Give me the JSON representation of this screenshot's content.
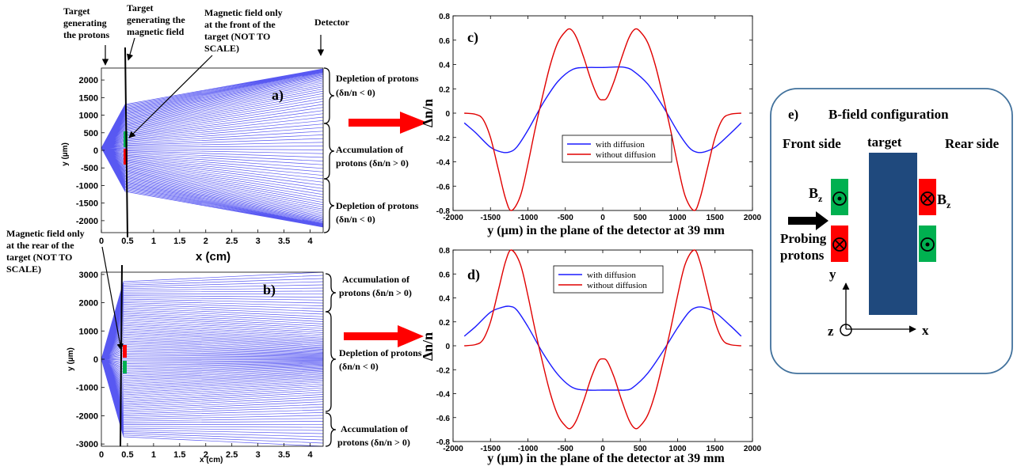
{
  "panel_a": {
    "label": "a)",
    "xlabel": "x (cm)",
    "ylabel": "y (µm)",
    "xticks": [
      "0",
      "0.5",
      "1",
      "1.5",
      "2",
      "2.5",
      "3",
      "3.5",
      "4"
    ],
    "yticks": [
      "2000",
      "1500",
      "1000",
      "500",
      "0",
      "-500",
      "-1000",
      "-1500",
      "-2000"
    ],
    "annotations": {
      "target_protons": [
        "Target",
        "generating",
        "the protons"
      ],
      "target_field": [
        "Target",
        "generating the",
        "magnetic field"
      ],
      "field_front": [
        "Magnetic field only",
        "at the front of the",
        "target (NOT TO",
        "SCALE)"
      ],
      "detector": "Detector"
    },
    "regions": [
      {
        "line1": "Depletion of protons",
        "line2": "(δn/n < 0)"
      },
      {
        "line1": "Accumulation of",
        "line2": "protons (δn/n > 0)"
      },
      {
        "line1": "Depletion of protons",
        "line2": "(δn/n < 0)"
      }
    ]
  },
  "panel_b": {
    "label": "b)",
    "xlabel": "x (cm)",
    "ylabel": "y (µm)",
    "xticks": [
      "0",
      "0.5",
      "1",
      "1.5",
      "2",
      "2.5",
      "3",
      "3.5",
      "4"
    ],
    "yticks": [
      "3000",
      "2000",
      "1000",
      "0",
      "-1000",
      "-2000",
      "-3000"
    ],
    "annotations": {
      "field_rear": [
        "Magnetic field only",
        "at the rear of the",
        "target (NOT TO",
        "SCALE)"
      ]
    },
    "regions": [
      {
        "line1": "Accumulation of",
        "line2": "protons (δn/n > 0)"
      },
      {
        "line1": "Depletion of protons",
        "line2": "(δn/n < 0)"
      },
      {
        "line1": "Accumulation of",
        "line2": "protons (δn/n > 0)"
      }
    ]
  },
  "panel_e": {
    "label": "e)",
    "title": "B-field configuration",
    "front": "Front side",
    "target": "target",
    "rear": "Rear side",
    "bz": "B",
    "bz_sub": "z",
    "probing1": "Probing",
    "probing2": "protons",
    "axis_y": "y",
    "axis_z": "z",
    "axis_x": "x"
  },
  "colors": {
    "with_diffusion": "#1a1aff",
    "without_diffusion": "#e00000",
    "rays": "#3b3bf0",
    "arrow": "#ff0000",
    "target_block": "#1f497d",
    "field_green": "#00b050",
    "field_red": "#ff0000",
    "frame_e": "#41719c"
  },
  "chart_data": [
    {
      "id": "c",
      "label": "c)",
      "type": "line",
      "xlabel": "y (µm) in the plane of the detector at 39 mm",
      "ylabel": "Δn/n",
      "xlim": [
        -2000,
        2000
      ],
      "ylim": [
        -0.8,
        0.8
      ],
      "xticks": [
        -2000,
        -1500,
        -1000,
        -500,
        0,
        500,
        1000,
        1500,
        2000
      ],
      "yticks": [
        0.8,
        0.6,
        0.4,
        0.2,
        0,
        -0.2,
        -0.4,
        -0.6,
        -0.8
      ],
      "ytick_labels": [
        "0.8",
        "0.6",
        "0.4",
        "0.2",
        "0",
        "-0.2",
        "-0.4",
        "-0.6",
        "-0.8"
      ],
      "legend": "center",
      "series": [
        {
          "name": "with diffusion",
          "color": "#1a1aff",
          "x": [
            -1850,
            -1700,
            -1500,
            -1350,
            -1250,
            -1150,
            -1000,
            -800,
            -600,
            -400,
            -200,
            0,
            200,
            300,
            400,
            600,
            800,
            1000,
            1150,
            1250,
            1350,
            1500,
            1700,
            1850
          ],
          "y": [
            -0.08,
            -0.16,
            -0.28,
            -0.32,
            -0.32,
            -0.28,
            -0.14,
            0.08,
            0.26,
            0.36,
            0.375,
            0.375,
            0.38,
            0.375,
            0.35,
            0.24,
            0.06,
            -0.15,
            -0.28,
            -0.32,
            -0.32,
            -0.28,
            -0.17,
            -0.08
          ]
        },
        {
          "name": "without diffusion",
          "color": "#e00000",
          "x": [
            -1850,
            -1700,
            -1600,
            -1500,
            -1400,
            -1300,
            -1220,
            -1100,
            -1000,
            -900,
            -800,
            -700,
            -600,
            -500,
            -430,
            -350,
            -250,
            -150,
            -60,
            0,
            60,
            150,
            250,
            350,
            430,
            500,
            600,
            700,
            800,
            900,
            1000,
            1100,
            1220,
            1300,
            1400,
            1500,
            1600,
            1700,
            1850
          ],
          "y": [
            0,
            -0.01,
            -0.05,
            -0.2,
            -0.45,
            -0.7,
            -0.8,
            -0.68,
            -0.42,
            -0.12,
            0.15,
            0.4,
            0.58,
            0.67,
            0.69,
            0.62,
            0.45,
            0.26,
            0.13,
            0.11,
            0.13,
            0.26,
            0.45,
            0.62,
            0.69,
            0.67,
            0.58,
            0.4,
            0.15,
            -0.12,
            -0.42,
            -0.68,
            -0.8,
            -0.7,
            -0.45,
            -0.2,
            -0.05,
            -0.01,
            0
          ]
        }
      ]
    },
    {
      "id": "d",
      "label": "d)",
      "type": "line",
      "xlabel": "y (µm) in the plane of the detector at 39 mm",
      "ylabel": "Δn/n",
      "xlim": [
        -2000,
        2000
      ],
      "ylim": [
        -0.8,
        0.8
      ],
      "xticks": [
        -2000,
        -1500,
        -1000,
        -500,
        0,
        500,
        1000,
        1500,
        2000
      ],
      "yticks": [
        0.8,
        0.6,
        0.4,
        0.2,
        0,
        -0.2,
        -0.4,
        -0.6,
        -0.8
      ],
      "ytick_labels": [
        "0.8",
        "0.6",
        "0.4",
        "0.2",
        "0",
        "-0.2",
        "-0.4",
        "-0.6",
        "-0.8"
      ],
      "legend": "top",
      "series": [
        {
          "name": "with diffusion",
          "color": "#1a1aff",
          "x": [
            -1850,
            -1700,
            -1500,
            -1350,
            -1250,
            -1150,
            -1000,
            -800,
            -600,
            -400,
            -200,
            0,
            200,
            300,
            400,
            600,
            800,
            1000,
            1150,
            1250,
            1350,
            1500,
            1700,
            1850
          ],
          "y": [
            0.08,
            0.16,
            0.28,
            0.32,
            0.33,
            0.3,
            0.16,
            -0.06,
            -0.24,
            -0.35,
            -0.37,
            -0.37,
            -0.37,
            -0.37,
            -0.35,
            -0.23,
            -0.05,
            0.15,
            0.28,
            0.32,
            0.32,
            0.28,
            0.17,
            0.08
          ]
        },
        {
          "name": "without diffusion",
          "color": "#e00000",
          "x": [
            -1850,
            -1700,
            -1600,
            -1500,
            -1400,
            -1300,
            -1220,
            -1100,
            -1000,
            -900,
            -800,
            -700,
            -600,
            -500,
            -430,
            -350,
            -250,
            -150,
            -60,
            0,
            60,
            150,
            250,
            350,
            430,
            500,
            600,
            700,
            800,
            900,
            1000,
            1100,
            1220,
            1300,
            1400,
            1500,
            1600,
            1700,
            1850
          ],
          "y": [
            0,
            0.01,
            0.05,
            0.2,
            0.45,
            0.7,
            0.8,
            0.68,
            0.42,
            0.12,
            -0.15,
            -0.4,
            -0.58,
            -0.67,
            -0.69,
            -0.62,
            -0.45,
            -0.26,
            -0.13,
            -0.11,
            -0.13,
            -0.26,
            -0.45,
            -0.62,
            -0.69,
            -0.67,
            -0.58,
            -0.4,
            -0.15,
            0.12,
            0.42,
            0.68,
            0.8,
            0.7,
            0.45,
            0.2,
            0.05,
            0.01,
            0
          ]
        }
      ]
    }
  ]
}
